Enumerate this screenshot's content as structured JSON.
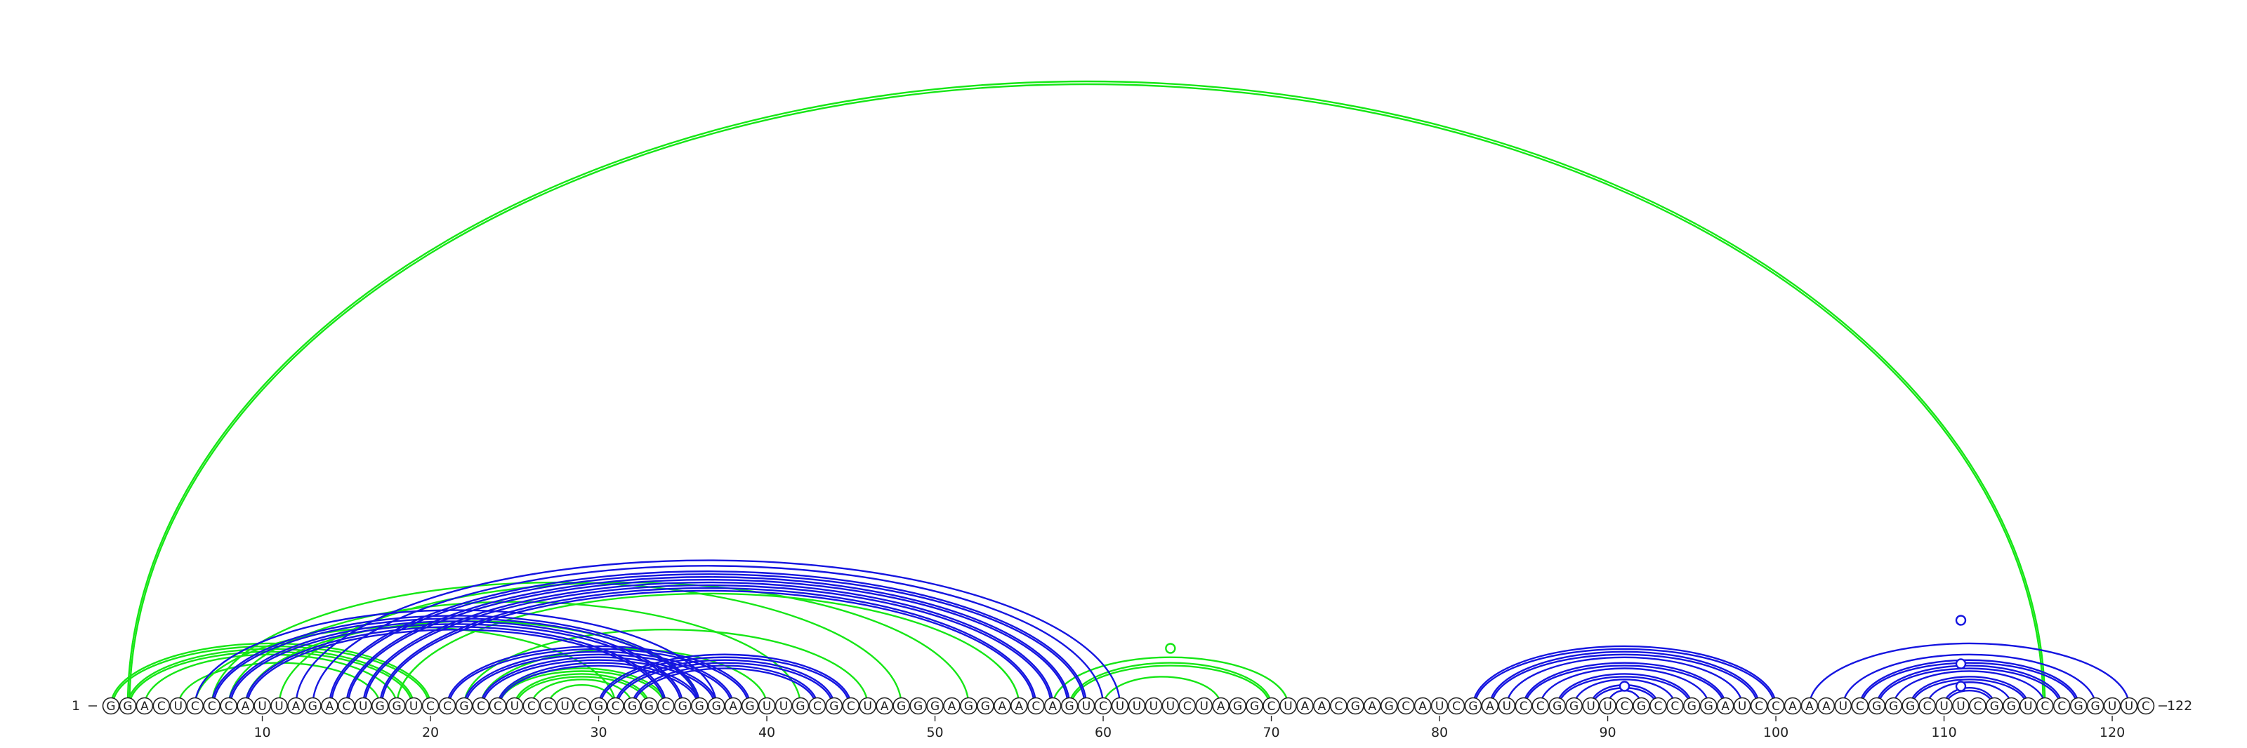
{
  "sequence": "GGACUCCCAUUAGACUGGUCCGCCUCCUCGCGGCGGGAGUUGCGCUAGGGAGGAACAGUCUUUUCUAGGCUAACGAGCAUCGAUCCGGUUCGCCGGAUCCAAAUCGGGCUUCGGUCCGGUUC",
  "length": 122,
  "start_label": "1",
  "end_label": "122",
  "tick_labels": [
    "10",
    "20",
    "30",
    "40",
    "50",
    "60",
    "70",
    "80",
    "90",
    "100",
    "110",
    "120"
  ],
  "colors": {
    "blue": "#1515e0",
    "green": "#16e616"
  },
  "arcs": [
    {
      "i": 2,
      "j": 116,
      "color": "green",
      "double": true
    },
    {
      "i": 1,
      "j": 20,
      "color": "green",
      "double": true
    },
    {
      "i": 2,
      "j": 19,
      "color": "green",
      "double": true
    },
    {
      "i": 3,
      "j": 18,
      "color": "green",
      "double": false
    },
    {
      "i": 5,
      "j": 17,
      "color": "green",
      "double": false
    },
    {
      "i": 6,
      "j": 31,
      "color": "green",
      "double": false
    },
    {
      "i": 7,
      "j": 48,
      "color": "green",
      "double": false
    },
    {
      "i": 8,
      "j": 42,
      "color": "green",
      "double": false
    },
    {
      "i": 9,
      "j": 36,
      "color": "green",
      "double": false
    },
    {
      "i": 11,
      "j": 52,
      "color": "green",
      "double": false
    },
    {
      "i": 18,
      "j": 55,
      "color": "green",
      "double": false
    },
    {
      "i": 22,
      "j": 46,
      "color": "green",
      "double": false
    },
    {
      "i": 23,
      "j": 40,
      "color": "green",
      "double": false
    },
    {
      "i": 24,
      "j": 34,
      "color": "green",
      "double": true
    },
    {
      "i": 25,
      "j": 33,
      "color": "green",
      "double": true
    },
    {
      "i": 26,
      "j": 32,
      "color": "green",
      "double": false
    },
    {
      "i": 27,
      "j": 31,
      "color": "green",
      "double": false
    },
    {
      "i": 57,
      "j": 71,
      "color": "green",
      "double": false
    },
    {
      "i": 58,
      "j": 70,
      "color": "green",
      "double": true
    },
    {
      "i": 60,
      "j": 67,
      "color": "green",
      "double": false
    },
    {
      "i": 6,
      "j": 37,
      "color": "blue",
      "double": false
    },
    {
      "i": 7,
      "j": 36,
      "color": "blue",
      "double": true
    },
    {
      "i": 8,
      "j": 35,
      "color": "blue",
      "double": true
    },
    {
      "i": 9,
      "j": 34,
      "color": "blue",
      "double": true
    },
    {
      "i": 12,
      "j": 61,
      "color": "blue",
      "double": false
    },
    {
      "i": 13,
      "j": 60,
      "color": "blue",
      "double": false
    },
    {
      "i": 14,
      "j": 59,
      "color": "blue",
      "double": true
    },
    {
      "i": 15,
      "j": 58,
      "color": "blue",
      "double": true
    },
    {
      "i": 16,
      "j": 57,
      "color": "blue",
      "double": true
    },
    {
      "i": 17,
      "j": 56,
      "color": "blue",
      "double": true
    },
    {
      "i": 21,
      "j": 39,
      "color": "blue",
      "double": true
    },
    {
      "i": 22,
      "j": 38,
      "color": "blue",
      "double": true
    },
    {
      "i": 23,
      "j": 37,
      "color": "blue",
      "double": true
    },
    {
      "i": 24,
      "j": 36,
      "color": "blue",
      "double": true
    },
    {
      "i": 30,
      "j": 45,
      "color": "blue",
      "double": true
    },
    {
      "i": 31,
      "j": 44,
      "color": "blue",
      "double": true
    },
    {
      "i": 32,
      "j": 43,
      "color": "blue",
      "double": true
    },
    {
      "i": 82,
      "j": 100,
      "color": "blue",
      "double": true
    },
    {
      "i": 83,
      "j": 99,
      "color": "blue",
      "double": true
    },
    {
      "i": 84,
      "j": 98,
      "color": "blue",
      "double": false
    },
    {
      "i": 85,
      "j": 97,
      "color": "blue",
      "double": true
    },
    {
      "i": 86,
      "j": 96,
      "color": "blue",
      "double": false
    },
    {
      "i": 87,
      "j": 95,
      "color": "blue",
      "double": true
    },
    {
      "i": 88,
      "j": 94,
      "color": "blue",
      "double": false
    },
    {
      "i": 89,
      "j": 93,
      "color": "blue",
      "double": true
    },
    {
      "i": 90,
      "j": 92,
      "color": "blue",
      "double": false
    },
    {
      "i": 102,
      "j": 121,
      "color": "blue",
      "double": false
    },
    {
      "i": 104,
      "j": 119,
      "color": "blue",
      "double": false
    },
    {
      "i": 105,
      "j": 118,
      "color": "blue",
      "double": true
    },
    {
      "i": 106,
      "j": 117,
      "color": "blue",
      "double": true
    },
    {
      "i": 107,
      "j": 116,
      "color": "blue",
      "double": false
    },
    {
      "i": 108,
      "j": 115,
      "color": "blue",
      "double": true
    },
    {
      "i": 109,
      "j": 114,
      "color": "blue",
      "double": false
    },
    {
      "i": 110,
      "j": 113,
      "color": "blue",
      "double": true
    }
  ],
  "unpaired_markers": [
    {
      "pos": 64,
      "color": "green"
    },
    {
      "pos": 91,
      "color": "blue"
    },
    {
      "pos": 111,
      "color": "blue"
    },
    {
      "pos": 111,
      "color": "blue"
    },
    {
      "pos": 111,
      "color": "blue"
    }
  ]
}
